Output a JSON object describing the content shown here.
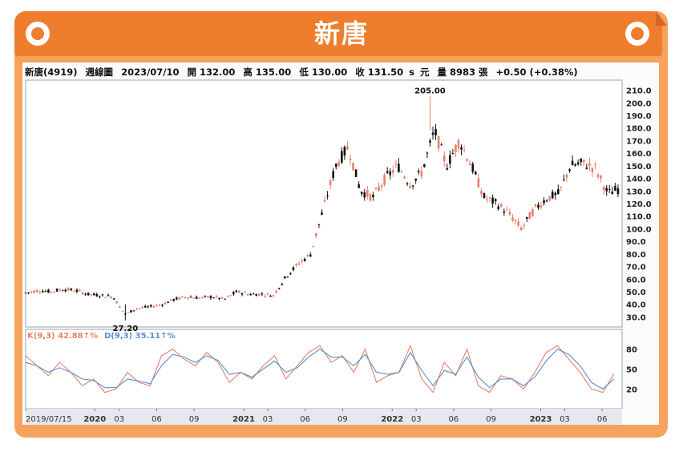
{
  "title": "新唐",
  "info": {
    "name": "新唐(4919)",
    "period": "週線圖",
    "date": "2023/07/10",
    "open": "開 132.00",
    "high": "高 135.00",
    "low": "低 130.00",
    "close": "收 131.50",
    "s": "s",
    "unit": "元",
    "volume": "量 8983 張",
    "change": "+0.50 (+0.38%)"
  },
  "colors": {
    "up": "#e8806a",
    "down": "#111111",
    "k": "#e8806a",
    "d": "#5b8fd1",
    "banner": "#ef7d2e"
  },
  "chart_data": [
    {
      "type": "candlestick",
      "title": "",
      "y_ticks": [
        "210.0",
        "200.0",
        "190.0",
        "180.0",
        "170.0",
        "160.0",
        "150.0",
        "140.0",
        "130.0",
        "120.0",
        "110.0",
        "100.0",
        "90.0",
        "80.0",
        "70.0",
        "60.0",
        "50.0",
        "40.0",
        "30.0"
      ],
      "ylim": [
        22,
        218
      ],
      "x_ticks": [
        "2019/07/15",
        "2020",
        "03",
        "06",
        "09",
        "2021",
        "03",
        "06",
        "09",
        "2022",
        "03",
        "06",
        "09",
        "2023",
        "03",
        "06"
      ],
      "annotations": [
        "205.00",
        "27.20"
      ],
      "close_path": [
        [
          "2019-07-15",
          49
        ],
        [
          "2019-08-15",
          51
        ],
        [
          "2019-09-15",
          50
        ],
        [
          "2019-10-15",
          52
        ],
        [
          "2019-11-15",
          51
        ],
        [
          "2019-12-15",
          48
        ],
        [
          "2020-01-15",
          47
        ],
        [
          "2020-02-15",
          46
        ],
        [
          "2020-03-15",
          32
        ],
        [
          "2020-04-15",
          37
        ],
        [
          "2020-05-15",
          38
        ],
        [
          "2020-06-15",
          40
        ],
        [
          "2020-07-15",
          44
        ],
        [
          "2020-08-15",
          46
        ],
        [
          "2020-09-15",
          45
        ],
        [
          "2020-10-15",
          46
        ],
        [
          "2020-11-15",
          44
        ],
        [
          "2020-12-15",
          50
        ],
        [
          "2021-01-15",
          48
        ],
        [
          "2021-02-15",
          48
        ],
        [
          "2021-03-15",
          47
        ],
        [
          "2021-04-15",
          62
        ],
        [
          "2021-05-15",
          72
        ],
        [
          "2021-06-15",
          80
        ],
        [
          "2021-07-15",
          115
        ],
        [
          "2021-08-15",
          150
        ],
        [
          "2021-09-15",
          165
        ],
        [
          "2021-10-15",
          130
        ],
        [
          "2021-11-15",
          125
        ],
        [
          "2021-12-15",
          140
        ],
        [
          "2022-01-15",
          150
        ],
        [
          "2022-02-15",
          135
        ],
        [
          "2022-03-15",
          145
        ],
        [
          "2022-04-15",
          178
        ],
        [
          "2022-05-15",
          150
        ],
        [
          "2022-06-15",
          170
        ],
        [
          "2022-07-15",
          150
        ],
        [
          "2022-08-15",
          125
        ],
        [
          "2022-09-15",
          120
        ],
        [
          "2022-10-15",
          112
        ],
        [
          "2022-11-15",
          100
        ],
        [
          "2022-12-15",
          115
        ],
        [
          "2023-01-15",
          124
        ],
        [
          "2023-02-15",
          128
        ],
        [
          "2023-03-15",
          150
        ],
        [
          "2023-04-15",
          152
        ],
        [
          "2023-05-15",
          148
        ],
        [
          "2023-06-15",
          128
        ],
        [
          "2023-07-10",
          131.5
        ]
      ]
    },
    {
      "type": "line",
      "title": "",
      "y_ticks": [
        "80",
        "50",
        "20"
      ],
      "ylim": [
        0,
        100
      ],
      "series": [
        {
          "name": "K(9,3) 42.88↑%",
          "values": [
            70,
            55,
            40,
            60,
            45,
            25,
            35,
            15,
            20,
            45,
            30,
            25,
            70,
            80,
            65,
            55,
            75,
            60,
            30,
            45,
            35,
            55,
            70,
            35,
            55,
            75,
            85,
            60,
            70,
            45,
            80,
            30,
            40,
            45,
            85,
            35,
            15,
            60,
            40,
            80,
            25,
            15,
            40,
            35,
            20,
            45,
            75,
            85,
            65,
            45,
            20,
            15,
            43
          ]
        },
        {
          "name": "D(9,3) 35.11↑%",
          "values": [
            60,
            55,
            45,
            52,
            45,
            35,
            33,
            22,
            22,
            35,
            32,
            28,
            55,
            72,
            68,
            60,
            70,
            63,
            42,
            45,
            38,
            50,
            62,
            45,
            52,
            68,
            80,
            68,
            68,
            55,
            72,
            45,
            42,
            45,
            75,
            48,
            25,
            48,
            42,
            68,
            38,
            22,
            35,
            35,
            25,
            38,
            62,
            80,
            72,
            55,
            30,
            20,
            35
          ]
        }
      ]
    }
  ]
}
